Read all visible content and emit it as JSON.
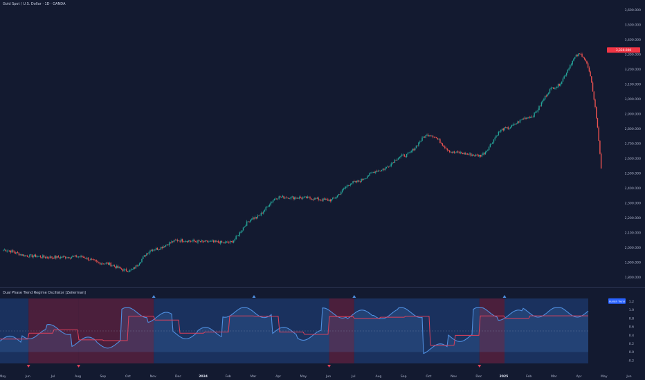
{
  "header": {
    "symbol_title": "Gold Spot / U.S. Dollar · 1D · OANDA"
  },
  "indicator": {
    "title": "Dual Phase Trend Regime Oscillator [Zeiierman]",
    "badge": "Bullish Trend"
  },
  "colors": {
    "background": "#131a30",
    "up": "#26a69a",
    "down": "#ef5350",
    "bull_line": "#4f8fe0",
    "bear_line": "#e0415c",
    "bull_region": "#1e3a6e",
    "bear_region": "#5a2140",
    "last_price_label": "#f23645",
    "badge": "#2962ff"
  },
  "chart_data": [
    {
      "type": "candlestick",
      "title": "Gold Spot / U.S. Dollar · 1D · OANDA",
      "y_axis_ticks": [
        "1,800.000",
        "1,900.000",
        "2,000.000",
        "2,100.000",
        "2,200.000",
        "2,300.000",
        "2,400.000",
        "2,500.000",
        "2,600.000",
        "2,700.000",
        "2,800.000",
        "2,900.000",
        "3,000.000",
        "3,100.000",
        "3,200.000",
        "3,300.000",
        "3,400.000",
        "3,500.000",
        "3,600.000"
      ],
      "ylim": [
        1770,
        3620
      ],
      "last_price_label": "3,330.000",
      "x_tick_labels": [
        "May",
        "Jun",
        "Jul",
        "Aug",
        "Sep",
        "Oct",
        "Nov",
        "Dec",
        "2024",
        "Feb",
        "Mar",
        "Apr",
        "May",
        "Jun",
        "Jul",
        "Aug",
        "Sep",
        "Oct",
        "Nov",
        "Dec",
        "2025",
        "Feb",
        "Mar",
        "Apr",
        "May",
        "Jun"
      ],
      "monthly_close": [
        {
          "month": "May 2023",
          "close": 1985
        },
        {
          "month": "Jun 2023",
          "close": 1945
        },
        {
          "month": "Jul 2023",
          "close": 1935
        },
        {
          "month": "Aug 2023",
          "close": 1940
        },
        {
          "month": "Sep 2023",
          "close": 1895
        },
        {
          "month": "Oct 2023",
          "close": 1845
        },
        {
          "month": "Nov 2023",
          "close": 1990
        },
        {
          "month": "Dec 2023",
          "close": 2050
        },
        {
          "month": "Jan 2024",
          "close": 2040
        },
        {
          "month": "Feb 2024",
          "close": 2035
        },
        {
          "month": "Mar 2024",
          "close": 2200
        },
        {
          "month": "Apr 2024",
          "close": 2340
        },
        {
          "month": "May 2024",
          "close": 2335
        },
        {
          "month": "Jun 2024",
          "close": 2320
        },
        {
          "month": "Jul 2024",
          "close": 2440
        },
        {
          "month": "Aug 2024",
          "close": 2520
        },
        {
          "month": "Sep 2024",
          "close": 2620
        },
        {
          "month": "Oct 2024",
          "close": 2760
        },
        {
          "month": "Nov 2024",
          "close": 2640
        },
        {
          "month": "Dec 2024",
          "close": 2620
        },
        {
          "month": "Jan 2025",
          "close": 2800
        },
        {
          "month": "Feb 2025",
          "close": 2880
        },
        {
          "month": "Mar 2025",
          "close": 3080
        },
        {
          "month": "Apr 2025",
          "close": 3300
        }
      ]
    },
    {
      "type": "area",
      "title": "Dual Phase Trend Regime Oscillator [Zeiierman]",
      "y_axis_ticks": [
        "-0.2",
        "0.0",
        "0.2",
        "0.4",
        "0.6",
        "0.8",
        "1.0",
        "1.2"
      ],
      "ylim": [
        -0.27,
        1.27
      ],
      "regimes": [
        {
          "start": "May 2023",
          "end": "Jun 2023",
          "regime": "bullish"
        },
        {
          "start": "Jun 2023",
          "end": "Aug 2023",
          "regime": "bearish"
        },
        {
          "start": "Aug 2023",
          "end": "Nov 2023",
          "regime": "bearish"
        },
        {
          "start": "Nov 2023",
          "end": "Mar 2024",
          "regime": "bullish"
        },
        {
          "start": "Mar 2024",
          "end": "Jun 2024",
          "regime": "bullish"
        },
        {
          "start": "Jun 2024",
          "end": "Jul 2024",
          "regime": "bearish"
        },
        {
          "start": "Jul 2024",
          "end": "Dec 2024",
          "regime": "bullish"
        },
        {
          "start": "Dec 2024",
          "end": "Jan 2025",
          "regime": "bearish"
        },
        {
          "start": "Jan 2025",
          "end": "Apr 2025",
          "regime": "bullish"
        }
      ],
      "badge": "Bullish Trend"
    }
  ]
}
